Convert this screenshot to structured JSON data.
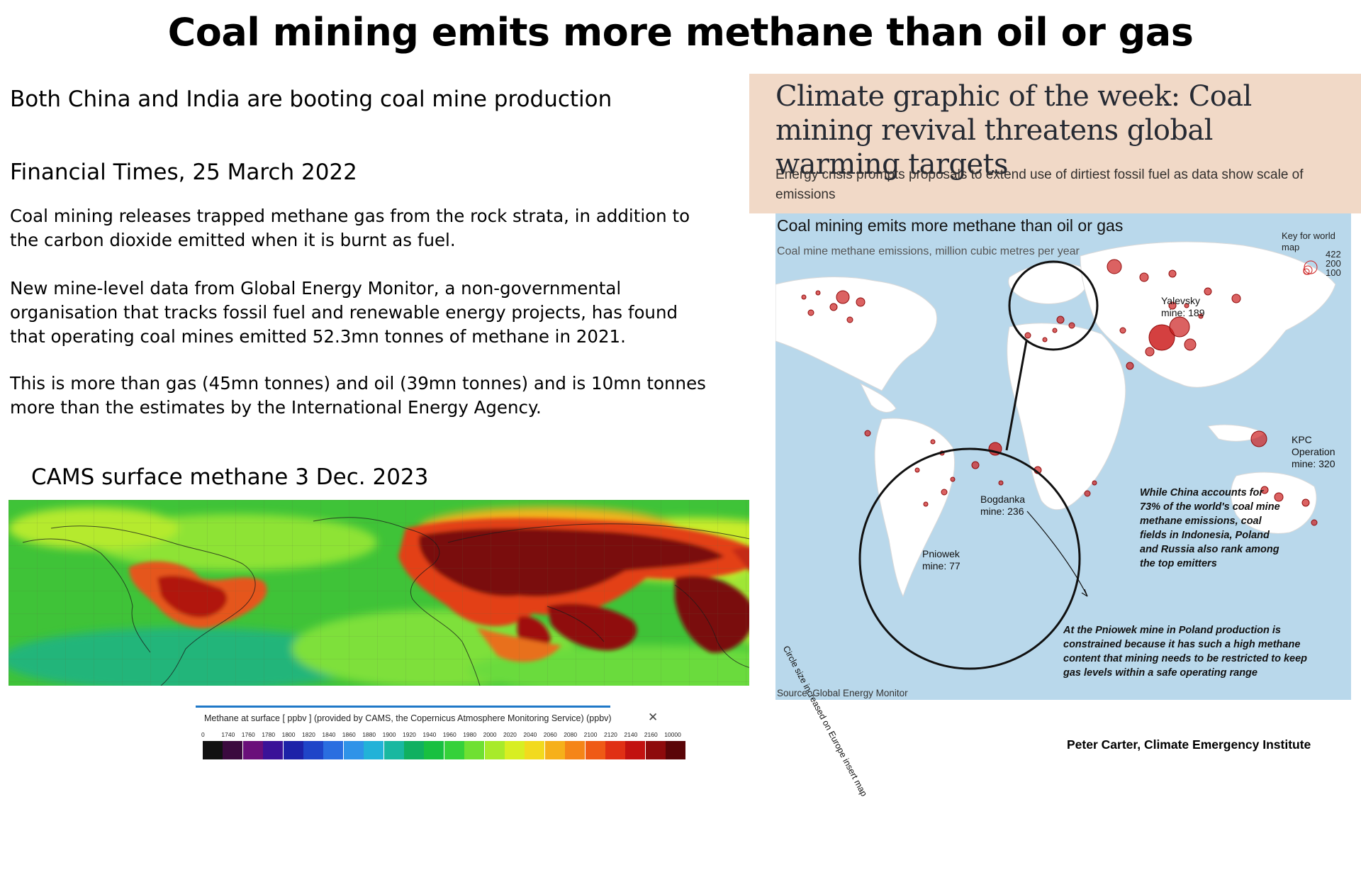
{
  "slide": {
    "title": "Coal mining emits more methane than oil or gas",
    "subtitle": "Both China and India are booting coal mine production",
    "source_line": "Financial Times, 25 March 2022",
    "paragraphs": [
      "Coal mining releases trapped methane gas from the rock strata, in addition to the carbon dioxide emitted when it is burnt as fuel.",
      "New mine-level data from Global Energy Monitor, a non-governmental organisation that tracks fossil fuel and renewable energy projects, has found that operating coal mines emitted 52.3mn tonnes of methane in 2021.",
      "This is more than gas (45mn tonnes) and oil (39mn tonnes) and is 10mn tonnes more than the estimates by the International Energy Agency."
    ],
    "cams_title": "CAMS surface methane 3 Dec. 2023",
    "credit": "Peter Carter, Climate Emergency Institute"
  },
  "cams_legend": {
    "title": "Methane at surface [ ppbv ] (provided by CAMS, the Copernicus Atmosphere Monitoring Service) (ppbv)",
    "close_glyph": "✕",
    "ticks": [
      "0",
      "1740",
      "1760",
      "1780",
      "1800",
      "1820",
      "1840",
      "1860",
      "1880",
      "1900",
      "1920",
      "1940",
      "1960",
      "1980",
      "2000",
      "2020",
      "2040",
      "2060",
      "2080",
      "2100",
      "2120",
      "2140",
      "2160",
      "10000"
    ],
    "colors": [
      "#111111",
      "#3b0a3f",
      "#6a0f7a",
      "#3a1298",
      "#1d22a8",
      "#1f45c8",
      "#2a6ee0",
      "#2f93e8",
      "#22b2d8",
      "#19b8a0",
      "#10b060",
      "#18c040",
      "#35d13a",
      "#6fe032",
      "#a8ea2a",
      "#d8ee22",
      "#f2da1e",
      "#f6b01a",
      "#f58518",
      "#ef5a16",
      "#e03014",
      "#c21210",
      "#8e0b0c",
      "#5a0508"
    ]
  },
  "ft": {
    "headline": "Climate graphic of the week: Coal mining revival threatens global warming targets",
    "standfirst": "Energy crisis prompts proposals to extend use of dirtiest fossil fuel as data show scale of emissions",
    "map": {
      "title": "Coal mining emits more methane than oil or gas",
      "subtitle": "Coal mine methane emissions, million cubic metres per year",
      "key_label": "Key for world map",
      "key_values": [
        "422",
        "200",
        "100"
      ],
      "labels": {
        "yalevsky": "Yalevsky mine: 189",
        "kpc": "KPC Operation mine: 320",
        "bogdanka": "Bogdanka mine: 236",
        "pniowek": "Pniowek mine: 77",
        "circle_note": "Circle size increased on Europe insert map"
      },
      "notes": {
        "china": "While China accounts for 73% of the world's coal mine methane emissions, coal fields in Indonesia, Poland and Russia also rank among the top emitters",
        "pniowek": "At the Pniowek mine in Poland production is constrained because it has such a high methane content that mining needs to be restricted to keep gas levels within a safe operating range"
      },
      "source": "Source: Global Energy Monitor"
    }
  },
  "colors": {
    "ft_pink": "#f1d9c7",
    "map_water": "#b9d8eb",
    "emission_red": "#cc1f1f"
  }
}
